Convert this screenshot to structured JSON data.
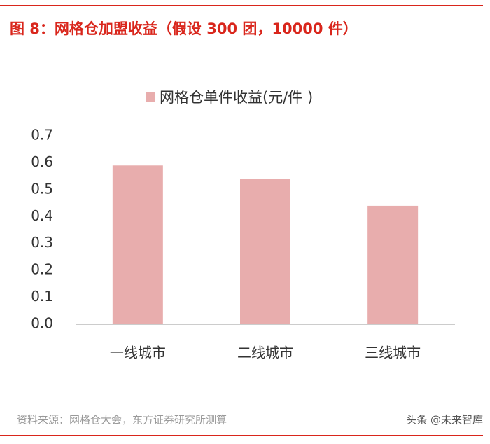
{
  "chart_data": {
    "type": "bar",
    "title": "图 8：网格仓加盟收益（假设 300 团，10000 件）",
    "categories": [
      "一线城市",
      "二线城市",
      "三线城市"
    ],
    "series": [
      {
        "name": "网格仓单件收益(元/件 )",
        "color": "#e8adad",
        "values": [
          0.59,
          0.54,
          0.44
        ]
      }
    ],
    "ylim": [
      0,
      0.7
    ],
    "yticks": [
      {
        "value": 0,
        "label": "0.0"
      },
      0.1,
      0.2,
      0.3,
      0.4,
      0.5,
      0.6,
      0.7
    ],
    "grid": false,
    "legend": "top",
    "source": "资料来源：网格仓大会，东方证券研究所测算",
    "watermark": "头条 @未来智库"
  }
}
